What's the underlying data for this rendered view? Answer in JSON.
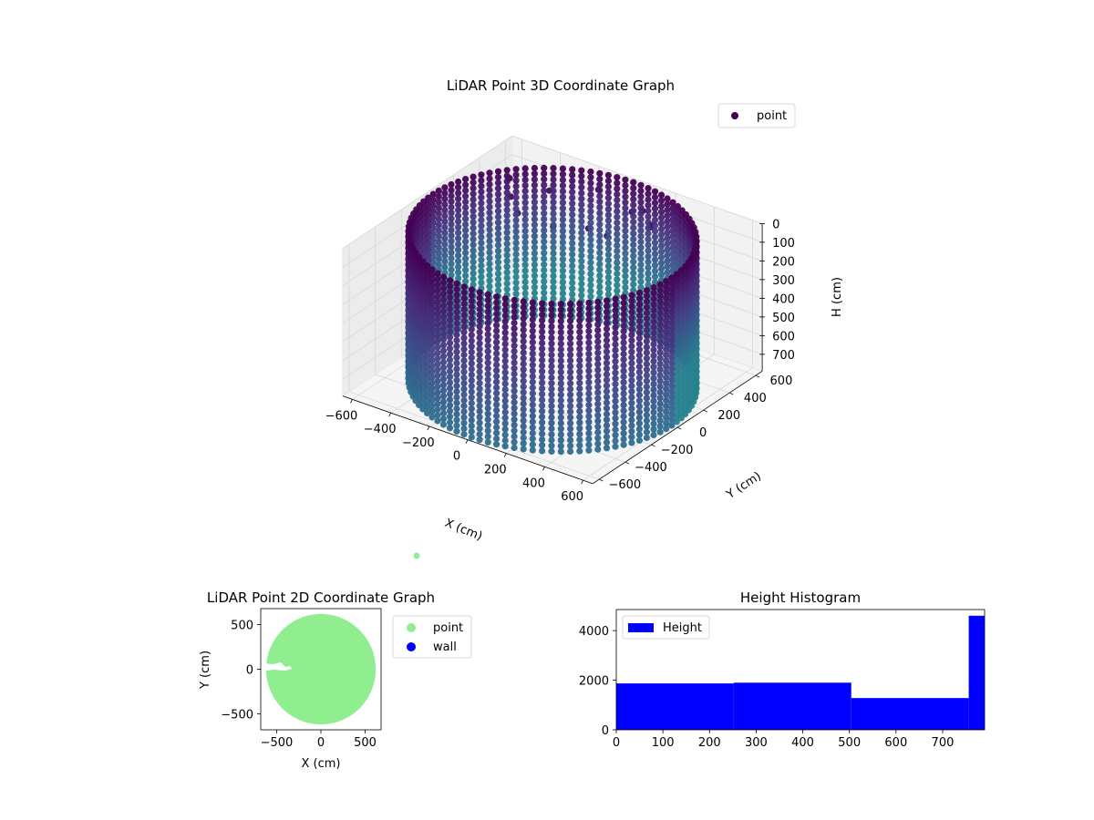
{
  "chart_data": [
    {
      "type": "scatter",
      "projection": "3d",
      "title": "LiDAR Point 3D Coordinate Graph",
      "xlabel": "X (cm)",
      "ylabel": "Y (cm)",
      "zlabel": "H (cm)",
      "x_ticks": [
        "−600",
        "−400",
        "−200",
        "0",
        "200",
        "400",
        "600"
      ],
      "y_ticks": [
        "−600",
        "−400",
        "−200",
        "0",
        "200",
        "400",
        "600"
      ],
      "z_ticks": [
        "0",
        "100",
        "200",
        "300",
        "400",
        "500",
        "600",
        "700"
      ],
      "xlim": [
        -650,
        650
      ],
      "ylim": [
        -650,
        650
      ],
      "zlim": [
        0,
        790
      ],
      "z_inverted": true,
      "legend": {
        "placement": "top-right",
        "entries": [
          "point"
        ]
      },
      "series": [
        {
          "name": "point",
          "shape": "cylinder",
          "radius": 620,
          "h_range": [
            0,
            790
          ],
          "marker_color": "#440154",
          "colormap": [
            "#440154",
            "#482878",
            "#3e4a89",
            "#31688e",
            "#26828e"
          ]
        }
      ],
      "grid": true
    },
    {
      "type": "scatter",
      "title": "LiDAR Point 2D Coordinate Graph",
      "xlabel": "X (cm)",
      "ylabel": "Y (cm)",
      "x_ticks": [
        "−500",
        "0",
        "500"
      ],
      "y_ticks": [
        "−500",
        "0",
        "500"
      ],
      "xlim": [
        -680,
        680
      ],
      "ylim": [
        -680,
        680
      ],
      "legend": {
        "placement": "outside-right",
        "entries": [
          "point",
          "wall"
        ]
      },
      "series": [
        {
          "name": "point",
          "color": "#90ee90",
          "shape": "disc",
          "radius": 620
        },
        {
          "name": "wall",
          "color": "#0000ff",
          "points": []
        }
      ],
      "stray_point": {
        "color": "#90ee90"
      },
      "grid": false
    },
    {
      "type": "bar",
      "title": "Height Histogram",
      "xlabel": "",
      "ylabel": "",
      "x_ticks": [
        "0",
        "100",
        "200",
        "300",
        "400",
        "500",
        "600",
        "700"
      ],
      "y_ticks": [
        "0",
        "2000",
        "4000"
      ],
      "xlim": [
        0,
        790
      ],
      "ylim": [
        0,
        4850
      ],
      "bin_edges": [
        0,
        252,
        504,
        756,
        790
      ],
      "series": [
        {
          "name": "Height",
          "color": "#0000ff",
          "values": [
            1870,
            1900,
            1280,
            4600
          ]
        }
      ],
      "legend": {
        "placement": "top-left",
        "entries": [
          "Height"
        ]
      },
      "grid": false
    }
  ]
}
